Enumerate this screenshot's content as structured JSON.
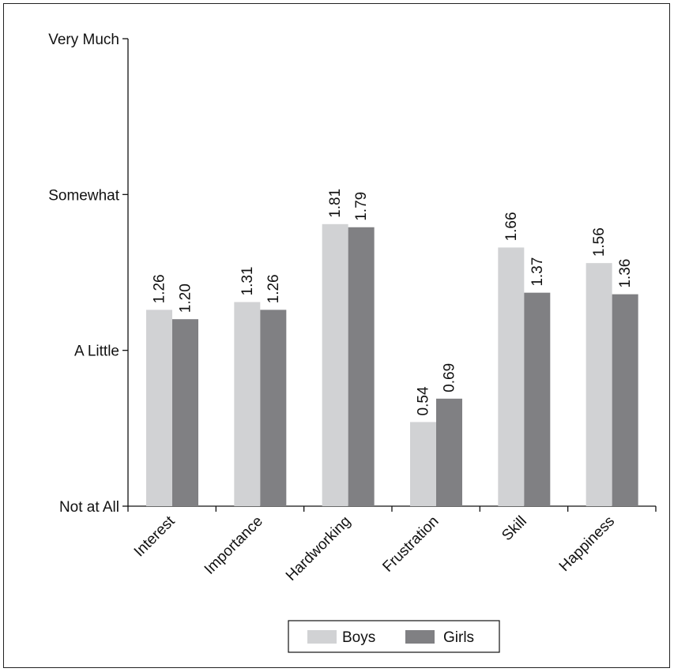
{
  "chart_data": {
    "type": "bar",
    "categories": [
      "Interest",
      "Importance",
      "Hardworking",
      "Frustration",
      "Skill",
      "Happiness"
    ],
    "series": [
      {
        "name": "Boys",
        "values": [
          1.26,
          1.31,
          1.81,
          0.54,
          1.66,
          1.56
        ],
        "labels": [
          "1.26",
          "1.31",
          "1.81",
          "0.54",
          "1.66",
          "1.56"
        ],
        "color": "#d1d2d4"
      },
      {
        "name": "Girls",
        "values": [
          1.2,
          1.26,
          1.79,
          0.69,
          1.37,
          1.36
        ],
        "labels": [
          "1.20",
          "1.26",
          "1.79",
          "0.69",
          "1.37",
          "1.36"
        ],
        "color": "#808083"
      }
    ],
    "yticks": [
      {
        "value": 0,
        "label": "Not at All"
      },
      {
        "value": 1,
        "label": "A Little"
      },
      {
        "value": 2,
        "label": "Somewhat"
      },
      {
        "value": 3,
        "label": "Very Much"
      }
    ],
    "ylim": [
      0,
      3
    ],
    "legend_position": "bottom-center",
    "grid": false
  }
}
